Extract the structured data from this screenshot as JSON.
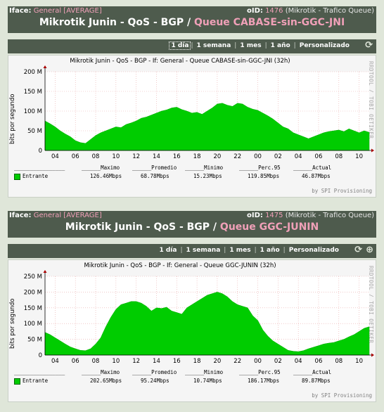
{
  "colors": {
    "header_bg": "#4e5b4d",
    "highlight": "#f0a0b8",
    "area": "#00cc00",
    "page_bg": "#dfe6d9"
  },
  "panels": [
    {
      "iface_label": "Iface:",
      "iface_value": "General [AVERAGE]",
      "oid_label": "oID:",
      "oid_value": "1476",
      "oid_desc": "(Mikrotik - Trafico Queue)",
      "title_main": "Mikrotik Junin - QoS - BGP /",
      "title_queue": "Queue CABASE-sin-GGC-JNI",
      "nav": [
        "1 día",
        "1 semana",
        "1 mes",
        "1 año",
        "Personalizado"
      ],
      "nav_selected": "1 día",
      "graph_title": "Mikrotik Junin - QoS - BGP - If: General - Queue CABASE-sin-GGC-JNI (32h)",
      "ylabel": "bits por segundo",
      "rrd": "RRDTOOL / TOBI OETIKER",
      "provision": "by SPI Provisioning",
      "legend_headers": [
        "Maximo",
        "Promedio",
        "Minimo",
        "Perc.95",
        "Actual"
      ],
      "series_name": "Entrante",
      "legend_values": [
        "126.46Mbps",
        "68.78Mbps",
        "15.23Mbps",
        "119.85Mbps",
        "46.87Mbps"
      ]
    },
    {
      "iface_label": "Iface:",
      "iface_value": "General [AVERAGE]",
      "oid_label": "oID:",
      "oid_value": "1475",
      "oid_desc": "(Mikrotik - Trafico Queue)",
      "title_main": "Mikrotik Junin - QoS - BGP /",
      "title_queue": "Queue GGC-JUNIN",
      "nav": [
        "1 día",
        "1 semana",
        "1 mes",
        "1 año",
        "Personalizado"
      ],
      "nav_selected": "",
      "graph_title": "Mikrotik Junin - QoS - BGP - If: General - Queue GGC-JUNIN (32h)",
      "ylabel": "bits por segundo",
      "rrd": "RRDTOOL / TOBI OETIKER",
      "provision": "by SPI Provisioning",
      "legend_headers": [
        "Maximo",
        "Promedio",
        "Minimo",
        "Perc.95",
        "Actual"
      ],
      "series_name": "Entrante",
      "legend_values": [
        "202.65Mbps",
        "95.24Mbps",
        "10.74Mbps",
        "186.17Mbps",
        "89.87Mbps"
      ]
    }
  ],
  "chart_data": [
    {
      "type": "area",
      "title": "Mikrotik Junin - QoS - BGP - If: General - Queue CABASE-sin-GGC-JNI (32h)",
      "ylabel": "bits por segundo",
      "ylim": [
        0,
        200
      ],
      "y_ticks": [
        "0",
        "50 M",
        "100 M",
        "150 M",
        "200 M"
      ],
      "x_ticks": [
        "04",
        "06",
        "08",
        "10",
        "12",
        "14",
        "16",
        "18",
        "20",
        "22",
        "00",
        "02",
        "04",
        "06",
        "08",
        "10"
      ],
      "series": [
        {
          "name": "Entrante",
          "color": "#00cc00",
          "x": [
            0,
            0.5,
            1,
            1.5,
            2,
            2.5,
            3,
            3.5,
            4,
            4.5,
            5,
            5.5,
            6,
            6.5,
            7,
            7.5,
            8,
            8.5,
            9,
            9.5,
            10,
            10.5,
            11,
            11.5,
            12,
            12.5,
            13,
            13.5,
            14,
            14.5,
            15,
            15.5,
            16,
            16.5,
            17,
            17.5,
            18,
            18.5,
            19,
            19.5,
            20,
            20.5,
            21,
            21.5,
            22,
            22.5,
            23,
            23.5,
            24,
            24.5,
            25,
            25.5,
            26,
            26.5,
            27,
            27.5,
            28,
            28.5,
            29,
            29.5,
            30,
            30.5,
            31,
            31.5,
            32
          ],
          "values": [
            75,
            68,
            60,
            50,
            42,
            35,
            25,
            20,
            18,
            28,
            38,
            45,
            50,
            55,
            60,
            58,
            66,
            70,
            75,
            82,
            85,
            90,
            95,
            100,
            103,
            108,
            110,
            104,
            100,
            95,
            97,
            92,
            100,
            108,
            118,
            120,
            115,
            112,
            120,
            118,
            110,
            105,
            102,
            95,
            88,
            80,
            70,
            60,
            55,
            45,
            40,
            35,
            30,
            35,
            40,
            45,
            48,
            50,
            52,
            48,
            55,
            50,
            45,
            50,
            46
          ]
        }
      ]
    },
    {
      "type": "area",
      "title": "Mikrotik Junin - QoS - BGP - If: General - Queue GGC-JUNIN (32h)",
      "ylabel": "bits por segundo",
      "ylim": [
        0,
        250
      ],
      "y_ticks": [
        "0",
        "50 M",
        "100 M",
        "150 M",
        "200 M",
        "250 M"
      ],
      "x_ticks": [
        "04",
        "06",
        "08",
        "10",
        "12",
        "14",
        "16",
        "18",
        "20",
        "22",
        "00",
        "02",
        "04",
        "06",
        "08",
        "10"
      ],
      "series": [
        {
          "name": "Entrante",
          "color": "#00cc00",
          "x": [
            0,
            0.5,
            1,
            1.5,
            2,
            2.5,
            3,
            3.5,
            4,
            4.5,
            5,
            5.5,
            6,
            6.5,
            7,
            7.5,
            8,
            8.5,
            9,
            9.5,
            10,
            10.5,
            11,
            11.5,
            12,
            12.5,
            13,
            13.5,
            14,
            14.5,
            15,
            15.5,
            16,
            16.5,
            17,
            17.5,
            18,
            18.5,
            19,
            19.5,
            20,
            20.5,
            21,
            21.5,
            22,
            22.5,
            23,
            23.5,
            24,
            24.5,
            25,
            25.5,
            26,
            26.5,
            27,
            27.5,
            28,
            28.5,
            29,
            29.5,
            30,
            30.5,
            31,
            31.5,
            32
          ],
          "values": [
            72,
            65,
            55,
            45,
            35,
            26,
            20,
            15,
            14,
            20,
            35,
            55,
            90,
            120,
            145,
            160,
            165,
            170,
            170,
            165,
            155,
            140,
            150,
            148,
            152,
            140,
            135,
            130,
            150,
            160,
            170,
            180,
            190,
            195,
            200,
            195,
            185,
            170,
            160,
            155,
            150,
            125,
            110,
            80,
            60,
            45,
            35,
            25,
            15,
            12,
            11,
            14,
            20,
            25,
            30,
            35,
            38,
            40,
            45,
            50,
            58,
            65,
            75,
            85,
            90
          ]
        }
      ]
    }
  ]
}
